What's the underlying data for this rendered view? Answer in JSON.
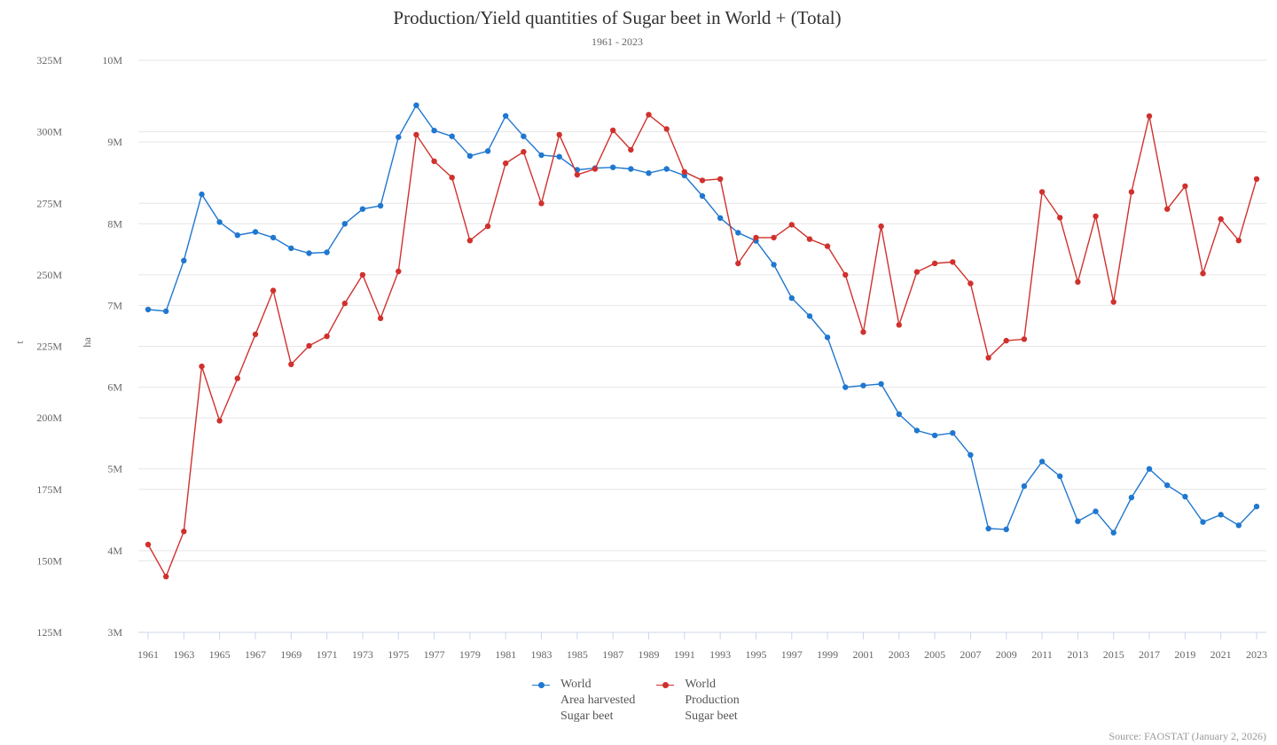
{
  "colors": {
    "area": "#1f77d0",
    "production": "#d0312d",
    "grid": "#e6e6e6",
    "axis": "#ccd6eb"
  },
  "chart_data": {
    "type": "line",
    "title": "Production/Yield quantities of Sugar beet in World + (Total)",
    "subtitle": "1961 - 2023",
    "source": "Source: FAOSTAT (January 2, 2026)",
    "x": [
      1961,
      1962,
      1963,
      1964,
      1965,
      1966,
      1967,
      1968,
      1969,
      1970,
      1971,
      1972,
      1973,
      1974,
      1975,
      1976,
      1977,
      1978,
      1979,
      1980,
      1981,
      1982,
      1983,
      1984,
      1985,
      1986,
      1987,
      1988,
      1989,
      1990,
      1991,
      1992,
      1993,
      1994,
      1995,
      1996,
      1997,
      1998,
      1999,
      2000,
      2001,
      2002,
      2003,
      2004,
      2005,
      2006,
      2007,
      2008,
      2009,
      2010,
      2011,
      2012,
      2013,
      2014,
      2015,
      2016,
      2017,
      2018,
      2019,
      2020,
      2021,
      2022,
      2023
    ],
    "xticks": [
      "1961",
      "1963",
      "1965",
      "1967",
      "1969",
      "1971",
      "1973",
      "1975",
      "1977",
      "1979",
      "1981",
      "1983",
      "1985",
      "1987",
      "1989",
      "1991",
      "1993",
      "1995",
      "1997",
      "1999",
      "2001",
      "2003",
      "2005",
      "2007",
      "2009",
      "2011",
      "2013",
      "2015",
      "2017",
      "2019",
      "2021",
      "2023"
    ],
    "axes": {
      "ha": {
        "label": "ha",
        "range": [
          3000000,
          10000000
        ],
        "ticks": [
          "3M",
          "4M",
          "5M",
          "6M",
          "7M",
          "8M",
          "9M",
          "10M"
        ]
      },
      "t": {
        "label": "t",
        "range": [
          125000000,
          325000000
        ],
        "ticks": [
          "125M",
          "150M",
          "175M",
          "200M",
          "225M",
          "250M",
          "275M",
          "300M",
          "325M"
        ]
      }
    },
    "series": [
      {
        "name": "World\nArea harvested\nSugar beet",
        "legend_lines": [
          "World",
          "Area harvested",
          "Sugar beet"
        ],
        "axis": "ha",
        "color_key": "area",
        "values": [
          6.95,
          6.93,
          7.55,
          8.36,
          8.02,
          7.86,
          7.9,
          7.83,
          7.7,
          7.64,
          7.65,
          8.0,
          8.18,
          8.22,
          9.06,
          9.45,
          9.14,
          9.07,
          8.83,
          8.89,
          9.32,
          9.07,
          8.84,
          8.82,
          8.66,
          8.68,
          8.69,
          8.67,
          8.62,
          8.67,
          8.59,
          8.34,
          8.07,
          7.89,
          7.79,
          7.5,
          7.09,
          6.87,
          6.61,
          6.0,
          6.02,
          6.04,
          5.67,
          5.47,
          5.41,
          5.44,
          5.17,
          4.27,
          4.26,
          4.79,
          5.09,
          4.91,
          4.36,
          4.48,
          4.22,
          4.65,
          5.0,
          4.8,
          4.66,
          4.35,
          4.44,
          4.31,
          4.54
        ]
      },
      {
        "name": "World\nProduction\nSugar beet",
        "legend_lines": [
          "World",
          "Production",
          "Sugar beet"
        ],
        "axis": "t",
        "color_key": "production",
        "values": [
          155.7,
          144.5,
          160.3,
          218.0,
          199.0,
          213.8,
          229.2,
          244.5,
          218.7,
          225.2,
          228.5,
          240.0,
          250.0,
          234.8,
          251.2,
          299.0,
          289.7,
          284.0,
          262.0,
          267.0,
          289.0,
          293.0,
          275.0,
          299.0,
          285.0,
          287.0,
          300.5,
          293.7,
          306.0,
          301.0,
          286.0,
          283.0,
          283.5,
          254.0,
          263.0,
          263.0,
          267.5,
          262.5,
          260.0,
          250.0,
          230.0,
          267.0,
          232.5,
          251.0,
          254.0,
          254.5,
          247.0,
          221.0,
          227.0,
          227.5,
          279.0,
          270.0,
          247.5,
          270.5,
          240.5,
          279.0,
          305.5,
          273.0,
          281.0,
          250.5,
          269.5,
          262.0,
          283.5
        ]
      }
    ]
  }
}
